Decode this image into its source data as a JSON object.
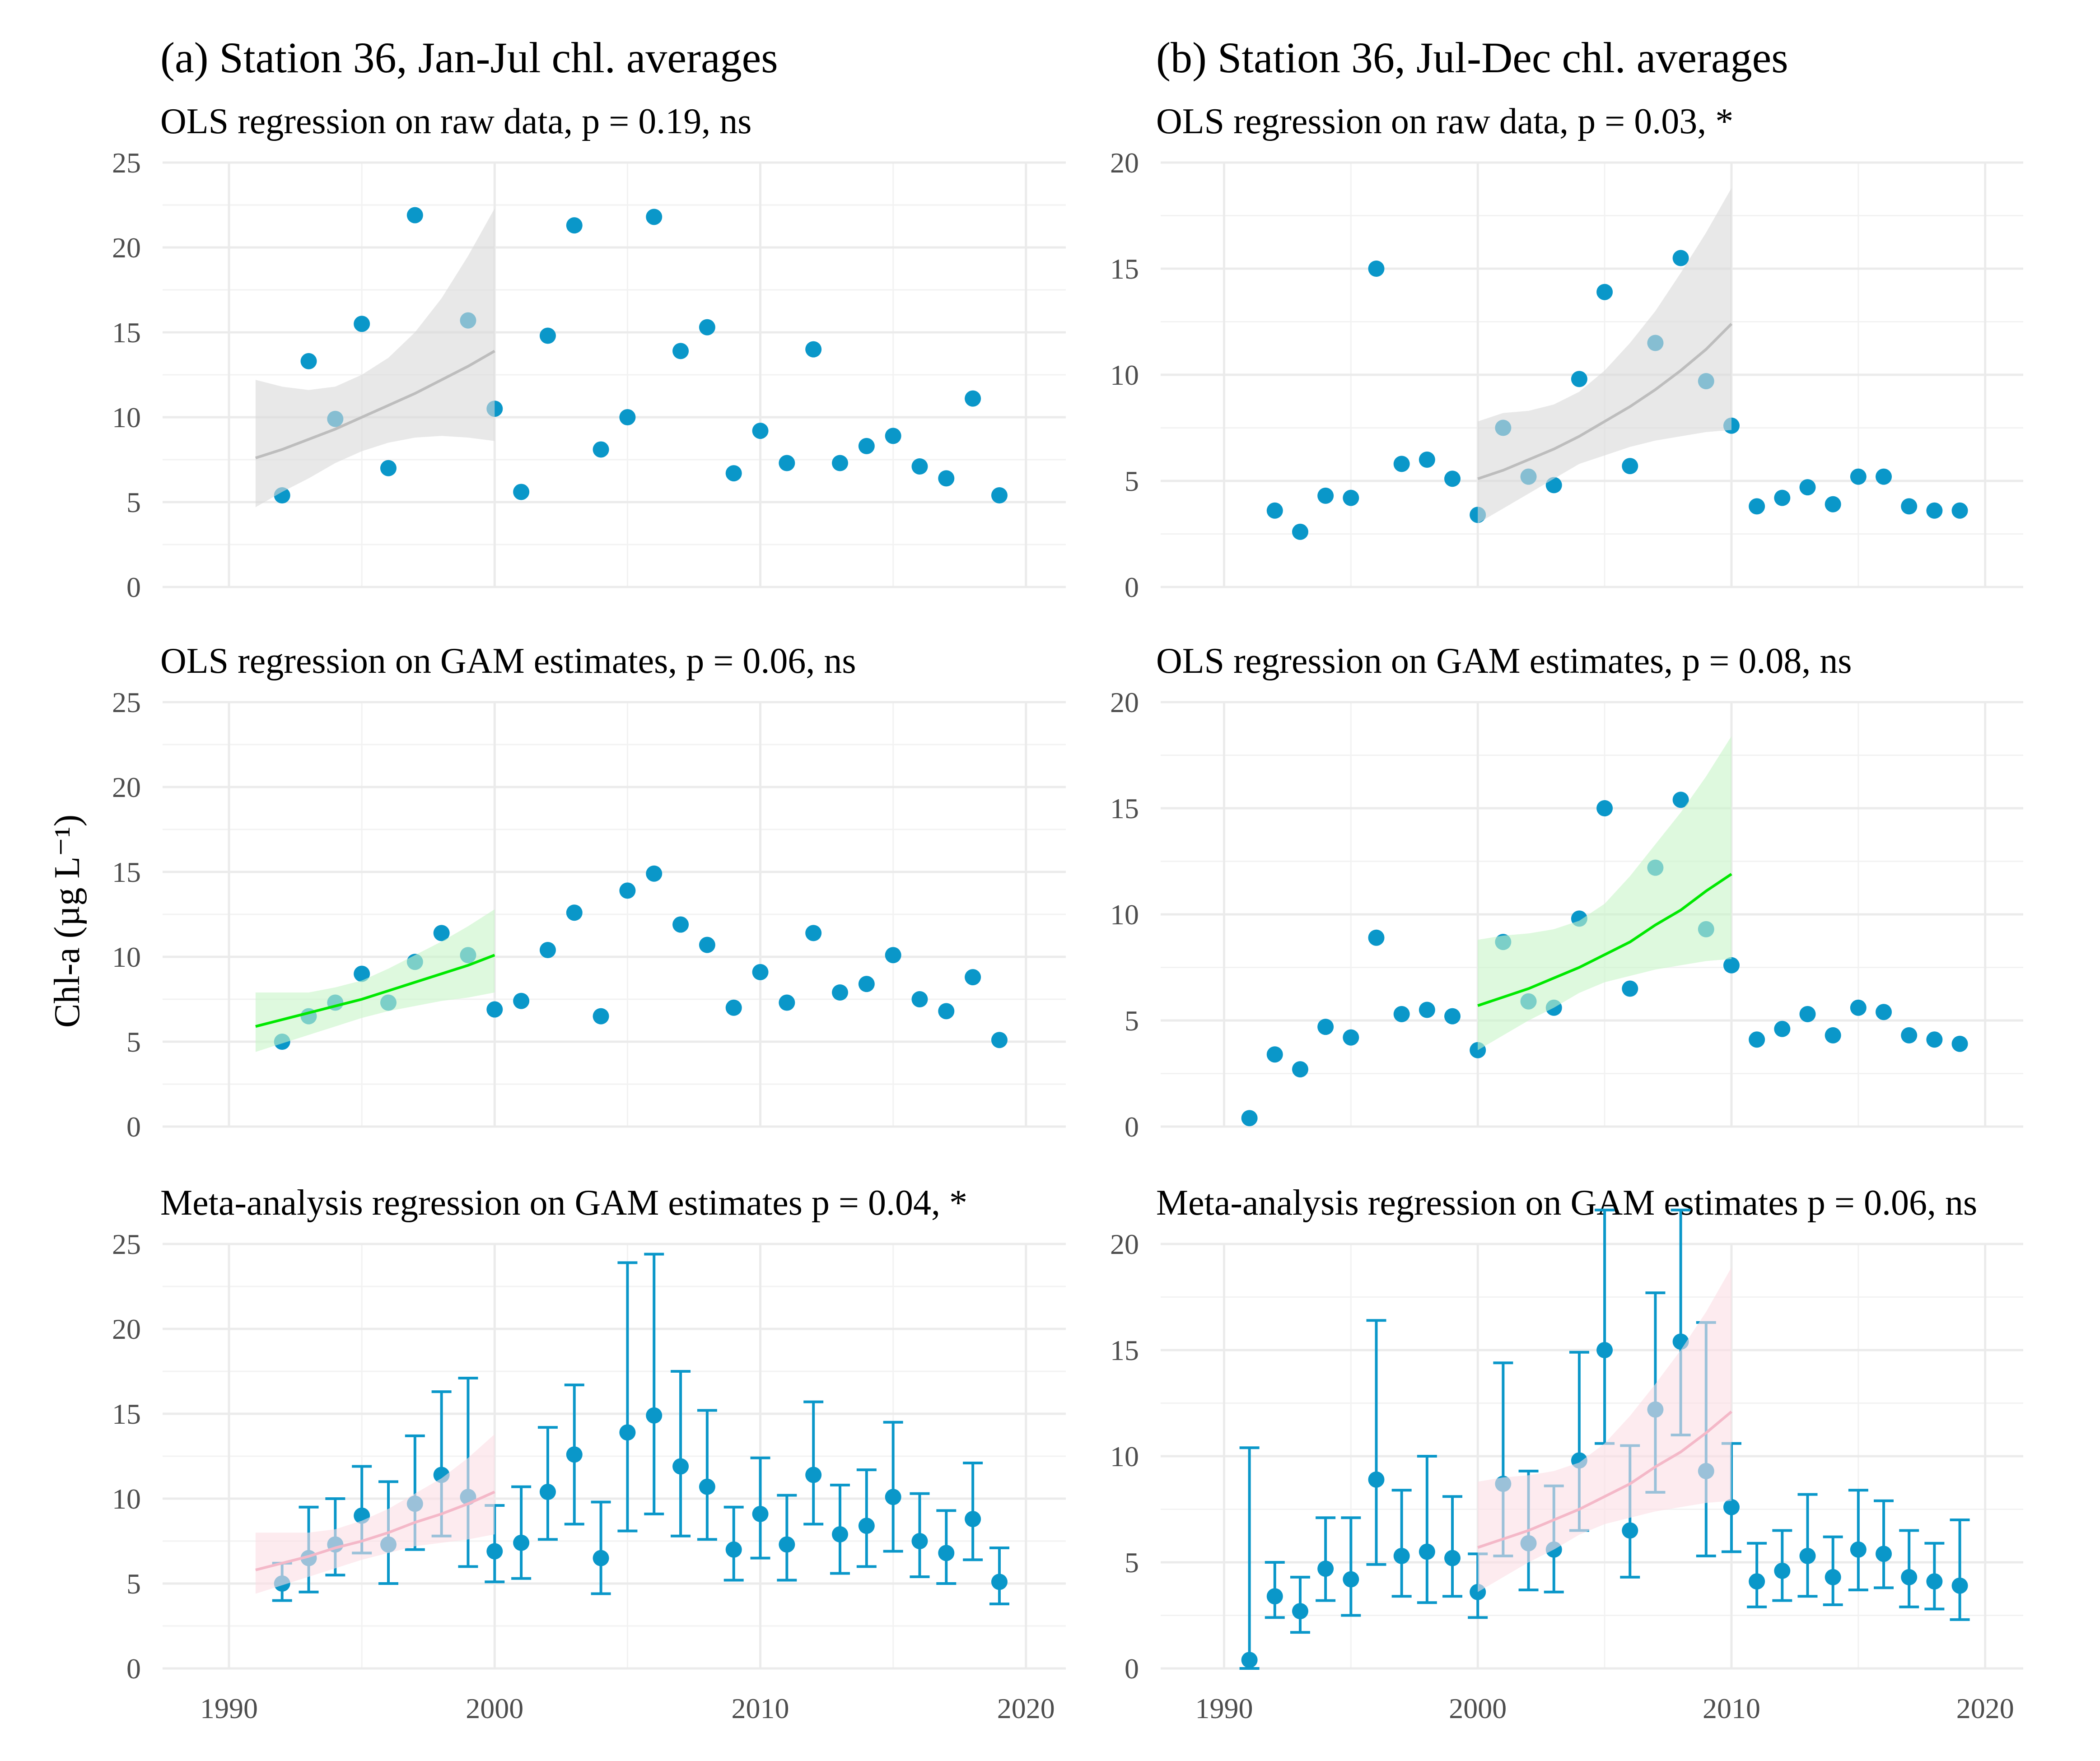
{
  "figure": {
    "y_axis_label": "Chl-a (µg L⁻¹)",
    "x_ticks": [
      "1990",
      "2000",
      "2010",
      "2020"
    ]
  },
  "chart_data": [
    {
      "id": "a1",
      "type": "scatter",
      "title": "(a) Station 36, Jan-Jul chl. averages",
      "subtitle": "OLS regression on raw data, p = 0.19, ns",
      "xlim": [
        1987.5,
        2021.5
      ],
      "ylim": [
        0,
        25
      ],
      "y_ticks": [
        0,
        5,
        10,
        15,
        20,
        25
      ],
      "point_color": "#0a97c9",
      "x": [
        1992,
        1993,
        1994,
        1995,
        1996,
        1997,
        1999,
        2000,
        2001,
        2002,
        2003,
        2004,
        2005,
        2006,
        2007,
        2008,
        2009,
        2010,
        2011,
        2012,
        2013,
        2014,
        2015,
        2016,
        2017,
        2018,
        2019
      ],
      "y": [
        5.4,
        13.3,
        9.9,
        15.5,
        7.0,
        21.9,
        15.7,
        10.5,
        5.6,
        14.8,
        21.3,
        8.1,
        10.0,
        21.8,
        13.9,
        15.3,
        6.7,
        9.2,
        7.3,
        14.0,
        7.3,
        8.3,
        8.9,
        7.1,
        6.4,
        11.1,
        5.4
      ],
      "trend": {
        "color": "#bdbdbd",
        "band_color": "#d9d9d9",
        "x": [
          1991,
          1992,
          1993,
          1994,
          1995,
          1996,
          1997,
          1998,
          1999,
          2000
        ],
        "y": [
          7.6,
          8.1,
          8.7,
          9.3,
          10.0,
          10.7,
          11.4,
          12.2,
          13.0,
          13.9
        ],
        "lower": [
          4.7,
          5.6,
          6.4,
          7.3,
          8.0,
          8.5,
          8.8,
          8.9,
          8.8,
          8.6
        ],
        "upper": [
          12.2,
          11.8,
          11.6,
          11.8,
          12.5,
          13.5,
          15.0,
          17.0,
          19.5,
          22.3
        ]
      }
    },
    {
      "id": "b1",
      "type": "scatter",
      "title": "(b) Station 36, Jul-Dec chl. averages",
      "subtitle": "OLS regression on raw data, p = 0.03, *",
      "xlim": [
        1987.5,
        2021.5
      ],
      "ylim": [
        0,
        20
      ],
      "y_ticks": [
        0,
        5,
        10,
        15,
        20
      ],
      "point_color": "#0a97c9",
      "x": [
        1992,
        1993,
        1994,
        1995,
        1996,
        1997,
        1998,
        1999,
        2000,
        2001,
        2002,
        2003,
        2004,
        2005,
        2006,
        2007,
        2008,
        2009,
        2010,
        2011,
        2012,
        2013,
        2014,
        2015,
        2016,
        2017,
        2018,
        2019
      ],
      "y": [
        3.6,
        2.6,
        4.3,
        4.2,
        15.0,
        5.8,
        6.0,
        5.1,
        3.4,
        7.5,
        5.2,
        4.8,
        9.8,
        13.9,
        5.7,
        11.5,
        15.5,
        9.7,
        7.6,
        3.8,
        4.2,
        4.7,
        3.9,
        5.2,
        5.2,
        3.8,
        3.6,
        3.6
      ],
      "trend": {
        "color": "#bdbdbd",
        "band_color": "#d9d9d9",
        "x": [
          2000,
          2001,
          2002,
          2003,
          2004,
          2005,
          2006,
          2007,
          2008,
          2009,
          2010
        ],
        "y": [
          5.1,
          5.5,
          6.0,
          6.5,
          7.1,
          7.8,
          8.5,
          9.3,
          10.2,
          11.2,
          12.4
        ],
        "lower": [
          3.0,
          3.7,
          4.4,
          5.1,
          5.8,
          6.2,
          6.6,
          6.9,
          7.1,
          7.3,
          7.4
        ],
        "upper": [
          7.8,
          8.2,
          8.3,
          8.6,
          9.2,
          10.2,
          11.5,
          13.0,
          14.8,
          16.7,
          18.8
        ]
      }
    },
    {
      "id": "a2",
      "type": "scatter",
      "title": "",
      "subtitle": "OLS regression on GAM estimates, p = 0.06, ns",
      "xlim": [
        1987.5,
        2021.5
      ],
      "ylim": [
        0,
        25
      ],
      "y_ticks": [
        0,
        5,
        10,
        15,
        20,
        25
      ],
      "point_color": "#0a97c9",
      "x": [
        1992,
        1993,
        1994,
        1995,
        1996,
        1997,
        1998,
        1999,
        2000,
        2001,
        2002,
        2003,
        2004,
        2005,
        2006,
        2007,
        2008,
        2009,
        2010,
        2011,
        2012,
        2013,
        2014,
        2015,
        2016,
        2017,
        2018,
        2019
      ],
      "y": [
        5.0,
        6.5,
        7.3,
        9.0,
        7.3,
        9.7,
        11.4,
        10.1,
        6.9,
        7.4,
        10.4,
        12.6,
        6.5,
        13.9,
        14.9,
        11.9,
        10.7,
        7.0,
        9.1,
        7.3,
        11.4,
        7.9,
        8.4,
        10.1,
        7.5,
        6.8,
        8.8,
        5.1
      ],
      "trend": {
        "color": "#00e800",
        "band_color": "#c8f5c8",
        "x": [
          1991,
          1992,
          1993,
          1994,
          1995,
          1996,
          1997,
          1998,
          1999,
          2000
        ],
        "y": [
          5.9,
          6.3,
          6.7,
          7.1,
          7.5,
          8.0,
          8.5,
          9.0,
          9.5,
          10.1
        ],
        "lower": [
          4.4,
          4.9,
          5.4,
          5.9,
          6.4,
          6.8,
          7.1,
          7.4,
          7.6,
          7.9
        ],
        "upper": [
          7.9,
          7.9,
          7.9,
          8.2,
          8.6,
          9.3,
          10.1,
          10.9,
          11.8,
          12.8
        ]
      }
    },
    {
      "id": "b2",
      "type": "scatter",
      "title": "",
      "subtitle": "OLS regression on GAM estimates, p = 0.08, ns",
      "xlim": [
        1987.5,
        2021.5
      ],
      "ylim": [
        0,
        20
      ],
      "y_ticks": [
        0,
        5,
        10,
        15,
        20
      ],
      "point_color": "#0a97c9",
      "x": [
        1991,
        1992,
        1993,
        1994,
        1995,
        1996,
        1997,
        1998,
        1999,
        2000,
        2001,
        2002,
        2003,
        2004,
        2005,
        2006,
        2007,
        2008,
        2009,
        2010,
        2011,
        2012,
        2013,
        2014,
        2015,
        2016,
        2017,
        2018,
        2019
      ],
      "y": [
        0.4,
        3.4,
        2.7,
        4.7,
        4.2,
        8.9,
        5.3,
        5.5,
        5.2,
        3.6,
        8.7,
        5.9,
        5.6,
        9.8,
        15.0,
        6.5,
        12.2,
        15.4,
        9.3,
        7.6,
        4.1,
        4.6,
        5.3,
        4.3,
        5.6,
        5.4,
        4.3,
        4.1,
        3.9
      ],
      "trend": {
        "color": "#00e800",
        "band_color": "#c8f5c8",
        "x": [
          2000,
          2001,
          2002,
          2003,
          2004,
          2005,
          2006,
          2007,
          2008,
          2009,
          2010
        ],
        "y": [
          5.7,
          6.1,
          6.5,
          7.0,
          7.5,
          8.1,
          8.7,
          9.5,
          10.2,
          11.1,
          11.9
        ],
        "lower": [
          3.6,
          4.3,
          5.0,
          5.6,
          6.3,
          6.8,
          7.1,
          7.4,
          7.6,
          7.8,
          7.9
        ],
        "upper": [
          8.8,
          9.0,
          9.1,
          9.3,
          9.7,
          10.5,
          11.8,
          13.3,
          14.8,
          16.5,
          18.4
        ]
      }
    },
    {
      "id": "a3",
      "type": "scatter",
      "title": "",
      "subtitle": "Meta-analysis regression on GAM estimates p = 0.04, *",
      "xlim": [
        1987.5,
        2021.5
      ],
      "ylim": [
        0,
        25
      ],
      "y_ticks": [
        0,
        5,
        10,
        15,
        20,
        25
      ],
      "x_ticks": [
        1990,
        2000,
        2010,
        2020
      ],
      "point_color": "#0a97c9",
      "x": [
        1992,
        1993,
        1994,
        1995,
        1996,
        1997,
        1998,
        1999,
        2000,
        2001,
        2002,
        2003,
        2004,
        2005,
        2006,
        2007,
        2008,
        2009,
        2010,
        2011,
        2012,
        2013,
        2014,
        2015,
        2016,
        2017,
        2018,
        2019
      ],
      "y": [
        5.0,
        6.5,
        7.3,
        9.0,
        7.3,
        9.7,
        11.4,
        10.1,
        6.9,
        7.4,
        10.4,
        12.6,
        6.5,
        13.9,
        14.9,
        11.9,
        10.7,
        7.0,
        9.1,
        7.3,
        11.4,
        7.9,
        8.4,
        10.1,
        7.5,
        6.8,
        8.8,
        5.1
      ],
      "err_low": [
        4.0,
        4.5,
        5.5,
        6.8,
        5.0,
        7.0,
        7.8,
        6.0,
        5.1,
        5.3,
        7.6,
        8.5,
        4.4,
        8.1,
        9.1,
        7.8,
        7.6,
        5.2,
        6.5,
        5.2,
        8.5,
        5.6,
        6.0,
        6.9,
        5.4,
        5.0,
        6.4,
        3.8
      ],
      "err_high": [
        6.2,
        9.5,
        10.0,
        11.9,
        11.0,
        13.7,
        16.3,
        17.1,
        9.6,
        10.7,
        14.2,
        16.7,
        9.8,
        23.9,
        24.4,
        17.5,
        15.2,
        9.5,
        12.4,
        10.2,
        15.7,
        10.8,
        11.7,
        14.5,
        10.3,
        9.3,
        12.1,
        7.1
      ],
      "trend": {
        "color": "#f4b8c8",
        "band_color": "#fbdde4",
        "x": [
          1991,
          1992,
          1993,
          1994,
          1995,
          1996,
          1997,
          1998,
          1999,
          2000
        ],
        "y": [
          5.8,
          6.2,
          6.6,
          7.1,
          7.5,
          8.0,
          8.6,
          9.1,
          9.7,
          10.4
        ],
        "lower": [
          4.4,
          4.9,
          5.4,
          5.9,
          6.4,
          6.8,
          7.2,
          7.4,
          7.6,
          7.9
        ],
        "upper": [
          8.0,
          8.0,
          8.0,
          8.2,
          8.7,
          9.4,
          10.3,
          11.2,
          12.4,
          13.8
        ]
      }
    },
    {
      "id": "b3",
      "type": "scatter",
      "title": "",
      "subtitle": "Meta-analysis regression on GAM estimates p = 0.06, ns",
      "xlim": [
        1987.5,
        2021.5
      ],
      "ylim": [
        0,
        20
      ],
      "y_ticks": [
        0,
        5,
        10,
        15,
        20
      ],
      "x_ticks": [
        1990,
        2000,
        2010,
        2020
      ],
      "point_color": "#0a97c9",
      "x": [
        1991,
        1992,
        1993,
        1994,
        1995,
        1996,
        1997,
        1998,
        1999,
        2000,
        2001,
        2002,
        2003,
        2004,
        2005,
        2006,
        2007,
        2008,
        2009,
        2010,
        2011,
        2012,
        2013,
        2014,
        2015,
        2016,
        2017,
        2018,
        2019
      ],
      "y": [
        0.4,
        3.4,
        2.7,
        4.7,
        4.2,
        8.9,
        5.3,
        5.5,
        5.2,
        3.6,
        8.7,
        5.9,
        5.6,
        9.8,
        15.0,
        6.5,
        12.2,
        15.4,
        9.3,
        7.6,
        4.1,
        4.6,
        5.3,
        4.3,
        5.6,
        5.4,
        4.3,
        4.1,
        3.9
      ],
      "err_low": [
        0.0,
        2.4,
        1.7,
        3.2,
        2.5,
        4.9,
        3.4,
        3.1,
        3.4,
        2.4,
        5.3,
        3.7,
        3.6,
        6.5,
        10.6,
        4.3,
        8.3,
        11.0,
        5.3,
        5.5,
        2.9,
        3.2,
        3.4,
        3.0,
        3.7,
        3.8,
        2.9,
        2.8,
        2.3
      ],
      "err_high": [
        10.4,
        5.0,
        4.3,
        7.1,
        7.1,
        16.4,
        8.4,
        10.0,
        8.1,
        5.4,
        14.4,
        9.3,
        8.6,
        14.9,
        21.6,
        10.5,
        17.7,
        21.6,
        16.3,
        10.6,
        5.9,
        6.5,
        8.2,
        6.2,
        8.4,
        7.9,
        6.5,
        5.9,
        7.0
      ],
      "trend": {
        "color": "#f4b8c8",
        "band_color": "#fbdde4",
        "x": [
          2000,
          2001,
          2002,
          2003,
          2004,
          2005,
          2006,
          2007,
          2008,
          2009,
          2010
        ],
        "y": [
          5.7,
          6.1,
          6.5,
          7.0,
          7.5,
          8.1,
          8.7,
          9.5,
          10.2,
          11.1,
          12.1
        ],
        "lower": [
          3.6,
          4.3,
          5.0,
          5.6,
          6.3,
          6.8,
          7.1,
          7.4,
          7.6,
          7.8,
          7.9
        ],
        "upper": [
          8.8,
          9.0,
          9.1,
          9.3,
          9.7,
          10.6,
          11.9,
          13.4,
          15.0,
          16.8,
          18.9
        ]
      }
    }
  ]
}
